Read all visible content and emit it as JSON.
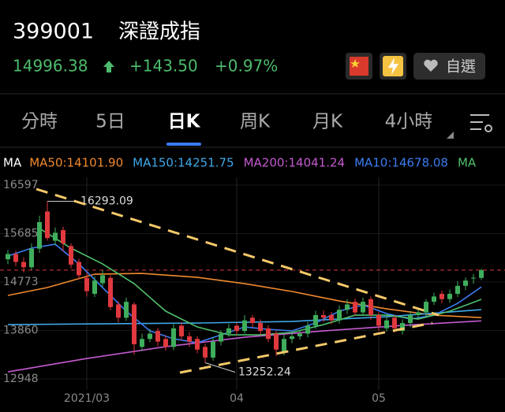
{
  "header": {
    "code": "399001",
    "name": "深證成指",
    "price": "14996.38",
    "change": "+143.50",
    "change_pct": "+0.97%",
    "watchlist": "自選"
  },
  "tabs": {
    "items": [
      "分時",
      "5日",
      "日K",
      "周K",
      "月K",
      "4小時"
    ],
    "active": 2
  },
  "chart_data": {
    "type": "candlestick",
    "indicator": "MA",
    "categories": [
      null,
      null,
      null,
      null,
      null,
      null,
      null,
      null,
      null,
      null,
      "2021/03",
      null,
      null,
      null,
      null,
      null,
      null,
      null,
      null,
      null,
      null,
      null,
      null,
      null,
      null,
      null,
      null,
      null,
      null,
      "04",
      null,
      null,
      null,
      null,
      null,
      null,
      null,
      null,
      null,
      null,
      null,
      null,
      null,
      null,
      null,
      null,
      null,
      "05",
      null,
      null,
      null,
      null,
      null,
      null,
      null,
      null,
      null,
      null,
      null,
      null,
      null
    ],
    "open": [
      15200,
      15300,
      15150,
      15050,
      15400,
      16100,
      15550,
      15750,
      15450,
      15150,
      14850,
      14550,
      14750,
      14850,
      14350,
      14100,
      14350,
      13550,
      13700,
      13850,
      13700,
      13550,
      13950,
      13750,
      13700,
      13550,
      13350,
      13650,
      13800,
      13950,
      13850,
      14100,
      14000,
      13900,
      13800,
      13450,
      13700,
      13750,
      13800,
      13950,
      14150,
      14150,
      14050,
      14250,
      14400,
      14200,
      14450,
      14150,
      13900,
      14100,
      13850,
      14000,
      14150,
      14200,
      14400,
      14550,
      14450,
      14550,
      14700,
      14850,
      14850
    ],
    "high": [
      15380,
      15360,
      15240,
      15500,
      16020,
      16293.09,
      15800,
      15810,
      15500,
      15210,
      14950,
      14880,
      15000,
      14900,
      14410,
      14480,
      14390,
      13800,
      13890,
      13910,
      13770,
      13980,
      14010,
      13830,
      13750,
      13610,
      13740,
      13860,
      13980,
      14010,
      14150,
      14150,
      14070,
      13960,
      13850,
      13780,
      13840,
      13860,
      14020,
      14230,
      14240,
      14210,
      14330,
      14450,
      14460,
      14480,
      14500,
      14210,
      14130,
      14150,
      14070,
      14230,
      14260,
      14450,
      14570,
      14610,
      14630,
      14790,
      14860,
      14923,
      15026
    ],
    "low": [
      15110,
      15070,
      14950,
      14990,
      15320,
      15550,
      15460,
      15350,
      15030,
      14820,
      14500,
      14490,
      14680,
      14240,
      14010,
      14040,
      13400,
      13470,
      13640,
      13560,
      13480,
      13490,
      13670,
      13550,
      13430,
      13252.24,
      13290,
      13580,
      13740,
      13770,
      13800,
      13920,
      13780,
      13640,
      13380,
      13390,
      13620,
      13690,
      13730,
      13890,
      14020,
      13980,
      13990,
      14170,
      14140,
      14130,
      14060,
      13850,
      13840,
      13820,
      13780,
      13920,
      14090,
      14130,
      14340,
      14370,
      14380,
      14490,
      14620,
      14740,
      14810
    ],
    "close": [
      15300,
      15150,
      15050,
      15400,
      15900,
      15600,
      15700,
      15500,
      15100,
      14900,
      14600,
      14800,
      14900,
      14300,
      14100,
      14400,
      13600,
      13700,
      13800,
      13650,
      13550,
      13900,
      13750,
      13650,
      13500,
      13350,
      13650,
      13800,
      13900,
      13850,
      14050,
      14000,
      13850,
      13700,
      13500,
      13700,
      13750,
      13800,
      13950,
      14150,
      14100,
      14050,
      14250,
      14350,
      14200,
      14400,
      14150,
      13950,
      14050,
      13900,
      14000,
      14150,
      14200,
      14400,
      14500,
      14450,
      14550,
      14700,
      14800,
      14853,
      14996.38
    ],
    "up_color": "#3fae5c",
    "down_color": "#e0393e",
    "price_line_color": "#e0393e",
    "series": [
      {
        "name": "MA50:14101.90",
        "color": "#f08a2e",
        "x": [
          0,
          5,
          11,
          17,
          24,
          30,
          36,
          42,
          48,
          54,
          60
        ],
        "values": [
          14520,
          14668,
          14920,
          14935,
          14860,
          14742,
          14594,
          14415,
          14267,
          14148,
          14101.9
        ]
      },
      {
        "name": "MA150:14251.75",
        "color": "#3fa8e8",
        "x": [
          0,
          12,
          24,
          36,
          48,
          60
        ],
        "values": [
          13970,
          13985,
          14000,
          14030,
          14119,
          14251.75
        ]
      },
      {
        "name": "MA200:14041.24",
        "color": "#c45ad0",
        "x": [
          0,
          10,
          20,
          30,
          40,
          50,
          60
        ],
        "values": [
          13080,
          13332,
          13555,
          13733,
          13852,
          13955,
          14041.24
        ]
      },
      {
        "name": "MA10:14678.08",
        "color": "#3b7cf0",
        "x": [
          0,
          3,
          6,
          9,
          12,
          15,
          18,
          21,
          24,
          27,
          30,
          33,
          36,
          39,
          42,
          45,
          48,
          51,
          54,
          57,
          60
        ],
        "values": [
          15261,
          15410,
          15484,
          15113,
          14668,
          14223,
          13852,
          13703,
          13629,
          13777,
          13926,
          13881,
          13852,
          14000,
          14223,
          14341,
          14178,
          14074,
          14148,
          14371,
          14678.08
        ]
      },
      {
        "name": "MA",
        "color": "#4fc06c",
        "x": [
          4,
          8,
          12,
          16,
          20,
          24,
          28,
          32,
          36,
          40,
          44,
          48,
          52,
          56,
          60
        ],
        "values": [
          15781,
          15410,
          15113,
          14742,
          14223,
          13926,
          13777,
          13777,
          13822,
          13970,
          14148,
          14148,
          14074,
          14223,
          14445
        ]
      }
    ],
    "ylim": [
      12740,
      16745
    ],
    "yticks": [
      12948,
      13860,
      14773,
      15685,
      16597
    ],
    "grid": true
  }
}
